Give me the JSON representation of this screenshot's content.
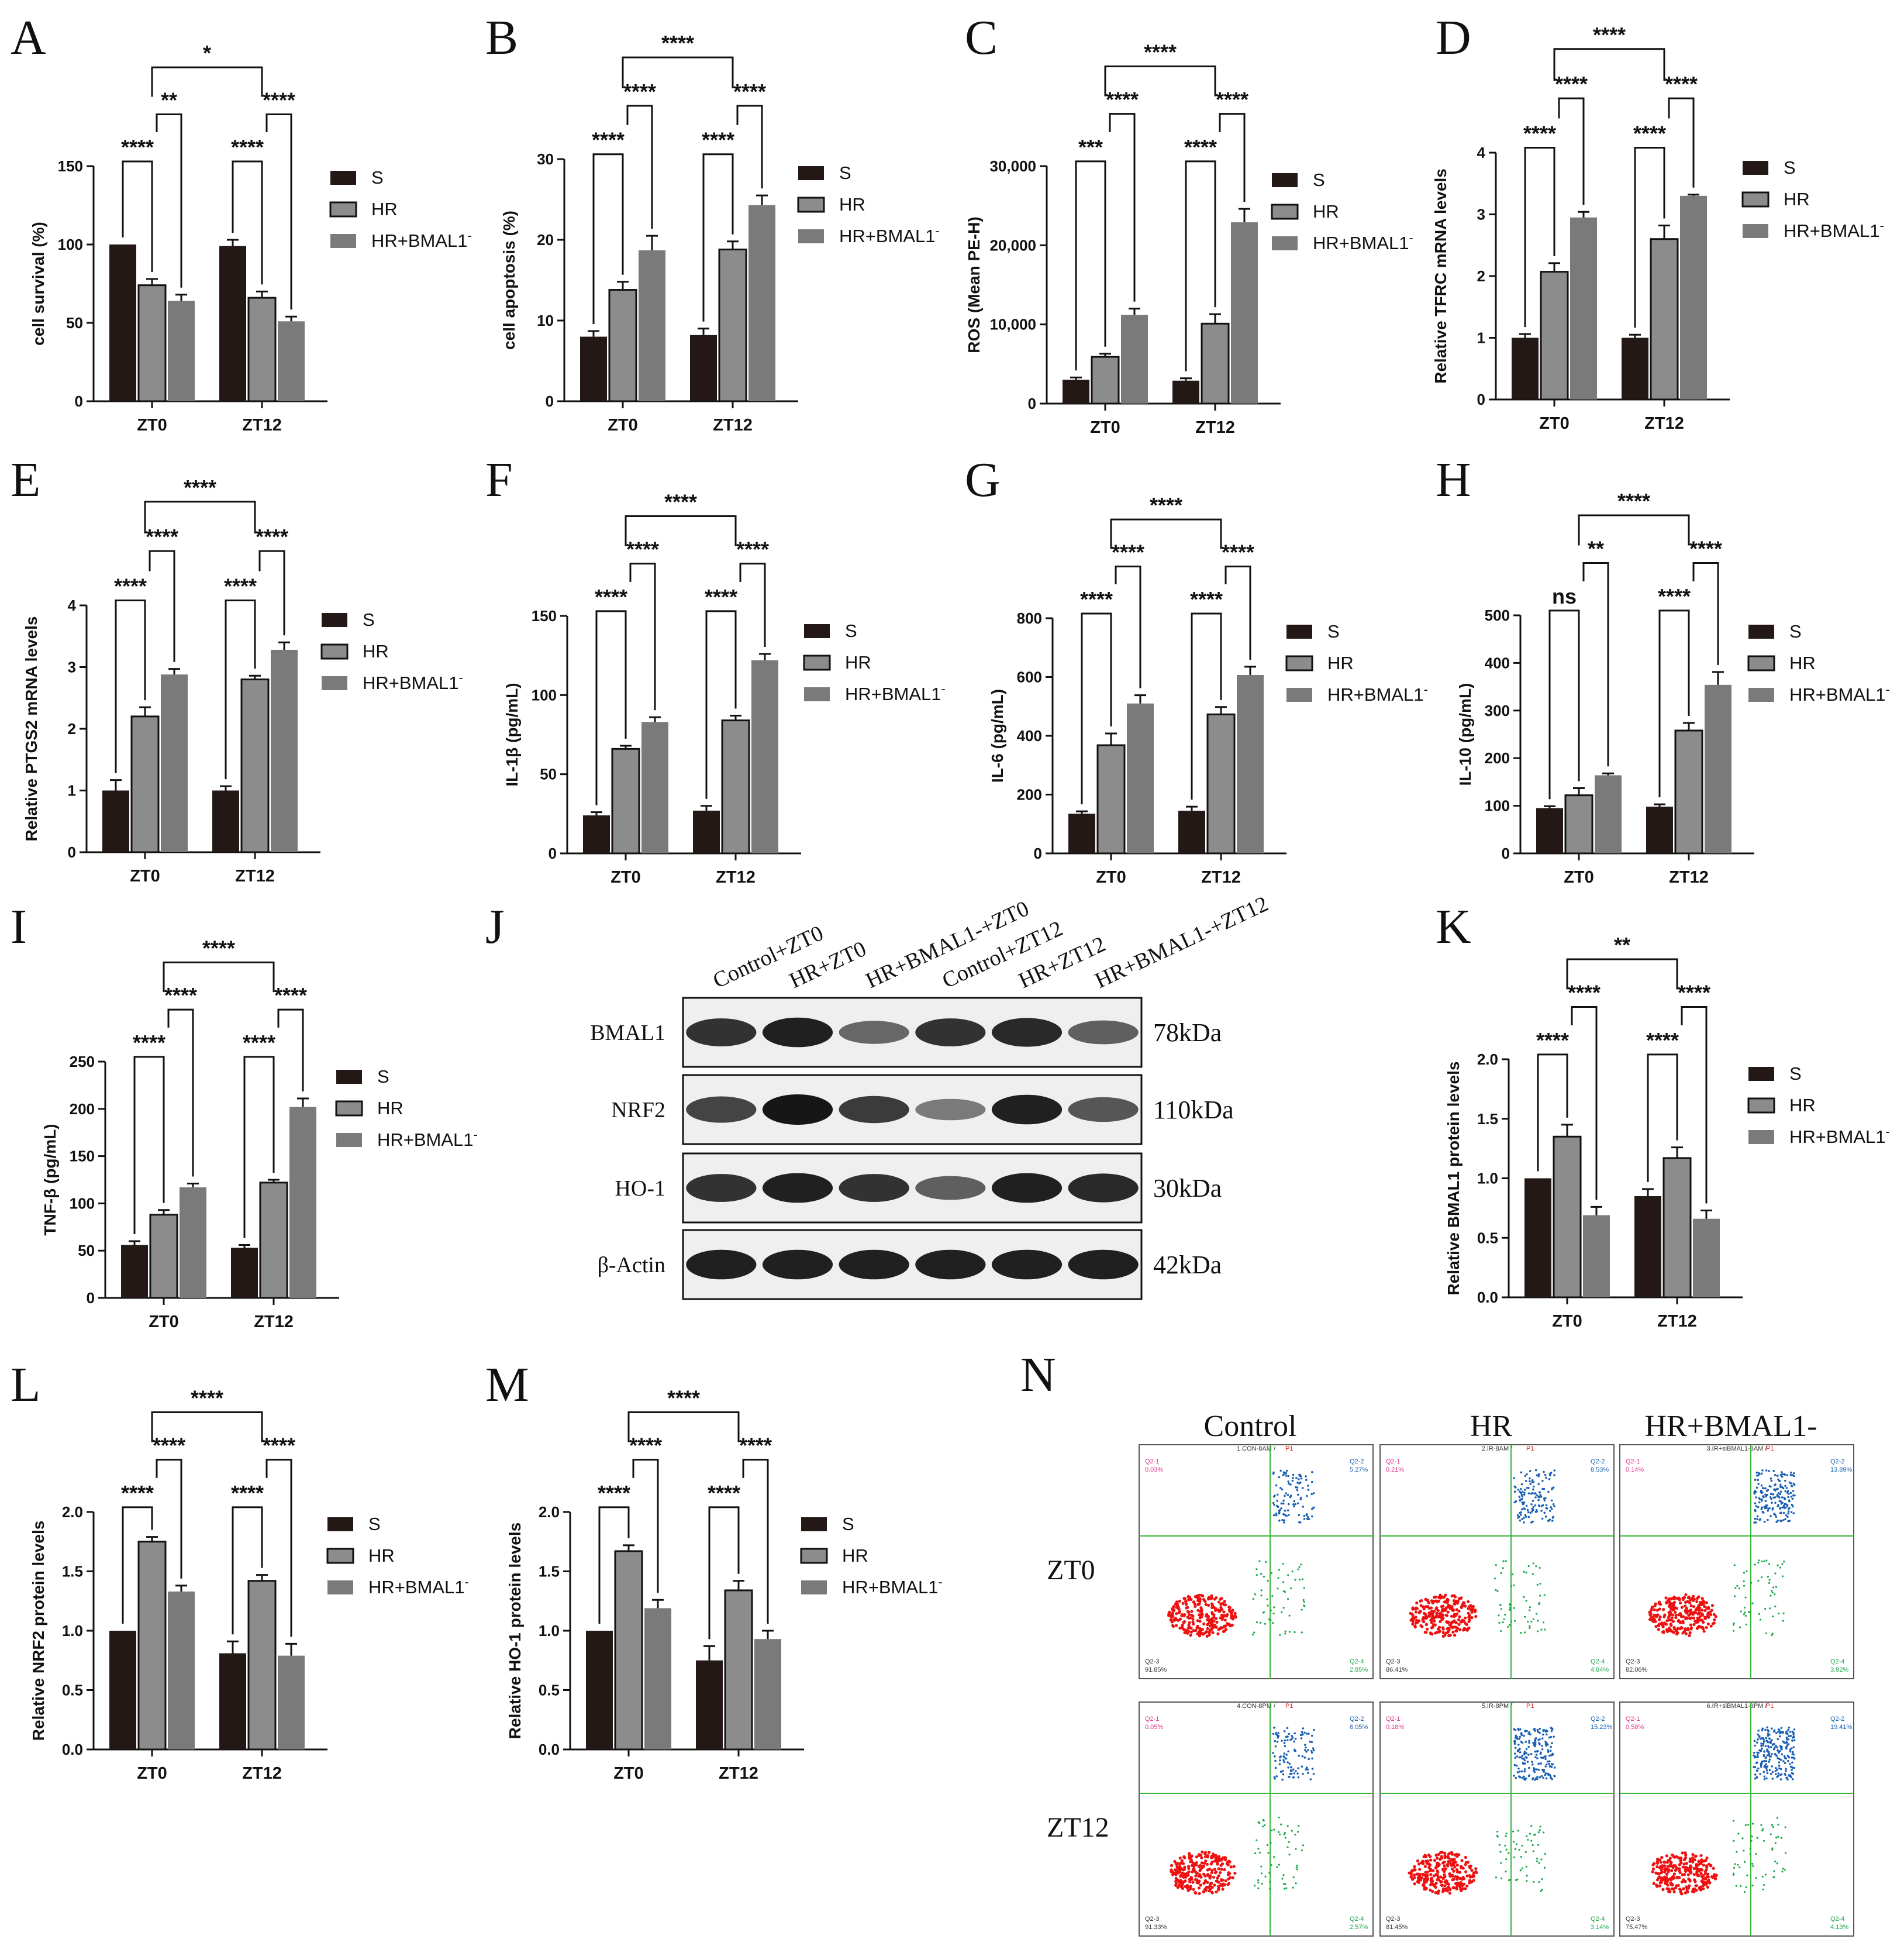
{
  "colors": {
    "S": "#231815",
    "HR": "#8c8c8c",
    "HR+BMAL1-": "#7a7a7a",
    "q1": "#e0368c",
    "q2": "#1a5fb4",
    "q3": "#ee1111",
    "q4": "#1aa84a",
    "gate": "#3ab53a"
  },
  "legend": [
    "S",
    "HR",
    "HR+BMAL1"
  ],
  "legend_sup": "-",
  "categories": [
    "ZT0",
    "ZT12"
  ],
  "chart_data": [
    {
      "id": "A",
      "type": "bar",
      "ylabel": "cell survival (%)",
      "ylim": [
        0,
        150
      ],
      "yticks": [
        "0",
        "50",
        "100",
        "150"
      ],
      "categories": [
        "ZT0",
        "ZT12"
      ],
      "series": [
        {
          "name": "S",
          "values": [
            100,
            99
          ],
          "errors": [
            0,
            4
          ]
        },
        {
          "name": "HR",
          "values": [
            74,
            66
          ],
          "errors": [
            4,
            4
          ]
        },
        {
          "name": "HR+BMAL1-",
          "values": [
            64,
            51
          ],
          "errors": [
            4,
            3
          ]
        }
      ],
      "annotations": [
        {
          "text": "****",
          "between": "S-HR",
          "group": "ZT0"
        },
        {
          "text": "**",
          "between": "HR-HR+BMAL1-",
          "group": "ZT0"
        },
        {
          "text": "****",
          "between": "S-HR",
          "group": "ZT12"
        },
        {
          "text": "****",
          "between": "HR-HR+BMAL1-",
          "group": "ZT12"
        },
        {
          "text": "*",
          "between": "ZT0-ZT12"
        }
      ]
    },
    {
      "id": "B",
      "type": "bar",
      "ylabel": "cell apoptosis (%)",
      "ylim": [
        0,
        30
      ],
      "yticks": [
        "0",
        "10",
        "20",
        "30"
      ],
      "categories": [
        "ZT0",
        "ZT12"
      ],
      "series": [
        {
          "name": "S",
          "values": [
            8,
            8.2
          ],
          "errors": [
            0.7,
            0.8
          ]
        },
        {
          "name": "HR",
          "values": [
            13.8,
            18.8
          ],
          "errors": [
            1,
            1
          ]
        },
        {
          "name": "HR+BMAL1-",
          "values": [
            18.7,
            24.3
          ],
          "errors": [
            1.8,
            1.2
          ]
        }
      ],
      "annotations": [
        {
          "text": "****",
          "between": "S-HR",
          "group": "ZT0"
        },
        {
          "text": "****",
          "between": "HR-HR+BMAL1-",
          "group": "ZT0"
        },
        {
          "text": "****",
          "between": "S-HR",
          "group": "ZT12"
        },
        {
          "text": "****",
          "between": "HR-HR+BMAL1-",
          "group": "ZT12"
        },
        {
          "text": "****",
          "between": "ZT0-ZT12"
        }
      ]
    },
    {
      "id": "C",
      "type": "bar",
      "ylabel": "ROS (Mean PE-H)",
      "ylim": [
        0,
        30000
      ],
      "yticks": [
        "0",
        "10,000",
        "20,000",
        "30,000"
      ],
      "categories": [
        "ZT0",
        "ZT12"
      ],
      "series": [
        {
          "name": "S",
          "values": [
            3000,
            2900
          ],
          "errors": [
            300,
            300
          ]
        },
        {
          "name": "HR",
          "values": [
            5900,
            10100
          ],
          "errors": [
            400,
            1200
          ]
        },
        {
          "name": "HR+BMAL1-",
          "values": [
            11200,
            22900
          ],
          "errors": [
            800,
            1700
          ]
        }
      ],
      "annotations": [
        {
          "text": "***",
          "between": "S-HR",
          "group": "ZT0"
        },
        {
          "text": "****",
          "between": "HR-HR+BMAL1-",
          "group": "ZT0"
        },
        {
          "text": "****",
          "between": "S-HR",
          "group": "ZT12"
        },
        {
          "text": "****",
          "between": "HR-HR+BMAL1-",
          "group": "ZT12"
        },
        {
          "text": "****",
          "between": "ZT0-ZT12"
        }
      ]
    },
    {
      "id": "D",
      "type": "bar",
      "ylabel": "Relative TFRC mRNA levels",
      "ylim": [
        0,
        4
      ],
      "yticks": [
        "0",
        "1",
        "2",
        "3",
        "4"
      ],
      "categories": [
        "ZT0",
        "ZT12"
      ],
      "series": [
        {
          "name": "S",
          "values": [
            1.0,
            1.0
          ],
          "errors": [
            0.06,
            0.05
          ]
        },
        {
          "name": "HR",
          "values": [
            2.07,
            2.6
          ],
          "errors": [
            0.14,
            0.22
          ]
        },
        {
          "name": "HR+BMAL1-",
          "values": [
            2.95,
            3.3
          ],
          "errors": [
            0.09,
            0.02
          ]
        }
      ],
      "annotations": [
        {
          "text": "****",
          "between": "S-HR",
          "group": "ZT0"
        },
        {
          "text": "****",
          "between": "HR-HR+BMAL1-",
          "group": "ZT0"
        },
        {
          "text": "****",
          "between": "S-HR",
          "group": "ZT12"
        },
        {
          "text": "****",
          "between": "HR-HR+BMAL1-",
          "group": "ZT12"
        },
        {
          "text": "****",
          "between": "ZT0-ZT12"
        }
      ]
    },
    {
      "id": "E",
      "type": "bar",
      "ylabel": "Relative PTGS2 mRNA levels",
      "ylim": [
        0,
        4
      ],
      "yticks": [
        "0",
        "1",
        "2",
        "3",
        "4"
      ],
      "categories": [
        "ZT0",
        "ZT12"
      ],
      "series": [
        {
          "name": "S",
          "values": [
            1.0,
            1.0
          ],
          "errors": [
            0.17,
            0.07
          ]
        },
        {
          "name": "HR",
          "values": [
            2.2,
            2.8
          ],
          "errors": [
            0.15,
            0.06
          ]
        },
        {
          "name": "HR+BMAL1-",
          "values": [
            2.88,
            3.28
          ],
          "errors": [
            0.09,
            0.12
          ]
        }
      ],
      "annotations": [
        {
          "text": "****",
          "between": "S-HR",
          "group": "ZT0"
        },
        {
          "text": "****",
          "between": "HR-HR+BMAL1-",
          "group": "ZT0"
        },
        {
          "text": "****",
          "between": "S-HR",
          "group": "ZT12"
        },
        {
          "text": "****",
          "between": "HR-HR+BMAL1-",
          "group": "ZT12"
        },
        {
          "text": "****",
          "between": "ZT0-ZT12"
        }
      ]
    },
    {
      "id": "F",
      "type": "bar",
      "ylabel": "IL-1β (pg/mL)",
      "ylim": [
        0,
        150
      ],
      "yticks": [
        "0",
        "50",
        "100",
        "150"
      ],
      "categories": [
        "ZT0",
        "ZT12"
      ],
      "series": [
        {
          "name": "S",
          "values": [
            24,
            27
          ],
          "errors": [
            2,
            3
          ]
        },
        {
          "name": "HR",
          "values": [
            66,
            84
          ],
          "errors": [
            2,
            3
          ]
        },
        {
          "name": "HR+BMAL1-",
          "values": [
            83,
            122
          ],
          "errors": [
            3,
            4
          ]
        }
      ],
      "annotations": [
        {
          "text": "****",
          "between": "S-HR",
          "group": "ZT0"
        },
        {
          "text": "****",
          "between": "HR-HR+BMAL1-",
          "group": "ZT0"
        },
        {
          "text": "****",
          "between": "S-HR",
          "group": "ZT12"
        },
        {
          "text": "****",
          "between": "HR-HR+BMAL1-",
          "group": "ZT12"
        },
        {
          "text": "****",
          "between": "ZT0-ZT12"
        }
      ]
    },
    {
      "id": "G",
      "type": "bar",
      "ylabel": "IL-6 (pg/mL)",
      "ylim": [
        0,
        800
      ],
      "yticks": [
        "0",
        "200",
        "400",
        "600",
        "800"
      ],
      "categories": [
        "ZT0",
        "ZT12"
      ],
      "series": [
        {
          "name": "S",
          "values": [
            135,
            145
          ],
          "errors": [
            8,
            14
          ]
        },
        {
          "name": "HR",
          "values": [
            368,
            473
          ],
          "errors": [
            40,
            25
          ]
        },
        {
          "name": "HR+BMAL1-",
          "values": [
            510,
            607
          ],
          "errors": [
            28,
            28
          ]
        }
      ],
      "annotations": [
        {
          "text": "****",
          "between": "S-HR",
          "group": "ZT0"
        },
        {
          "text": "****",
          "between": "HR-HR+BMAL1-",
          "group": "ZT0"
        },
        {
          "text": "****",
          "between": "S-HR",
          "group": "ZT12"
        },
        {
          "text": "****",
          "between": "HR-HR+BMAL1-",
          "group": "ZT12"
        },
        {
          "text": "****",
          "between": "ZT0-ZT12"
        }
      ]
    },
    {
      "id": "H",
      "type": "bar",
      "ylabel": "IL-10 (pg/mL)",
      "ylim": [
        0,
        500
      ],
      "yticks": [
        "0",
        "100",
        "200",
        "300",
        "400",
        "500"
      ],
      "categories": [
        "ZT0",
        "ZT12"
      ],
      "series": [
        {
          "name": "S",
          "values": [
            95,
            98
          ],
          "errors": [
            4,
            5
          ]
        },
        {
          "name": "HR",
          "values": [
            122,
            258
          ],
          "errors": [
            15,
            16
          ]
        },
        {
          "name": "HR+BMAL1-",
          "values": [
            164,
            354
          ],
          "errors": [
            4,
            27
          ]
        }
      ],
      "annotations": [
        {
          "text": "ns",
          "between": "S-HR",
          "group": "ZT0"
        },
        {
          "text": "**",
          "between": "HR-HR+BMAL1-",
          "group": "ZT0"
        },
        {
          "text": "****",
          "between": "S-HR",
          "group": "ZT12"
        },
        {
          "text": "****",
          "between": "HR-HR+BMAL1-",
          "group": "ZT12"
        },
        {
          "text": "****",
          "between": "ZT0-ZT12"
        }
      ]
    },
    {
      "id": "I",
      "type": "bar",
      "ylabel": "TNF-β (pg/mL)",
      "ylim": [
        0,
        250
      ],
      "yticks": [
        "0",
        "50",
        "100",
        "150",
        "200",
        "250"
      ],
      "categories": [
        "ZT0",
        "ZT12"
      ],
      "series": [
        {
          "name": "S",
          "values": [
            56,
            53
          ],
          "errors": [
            4,
            3
          ]
        },
        {
          "name": "HR",
          "values": [
            88,
            122
          ],
          "errors": [
            5,
            3
          ]
        },
        {
          "name": "HR+BMAL1-",
          "values": [
            117,
            202
          ],
          "errors": [
            4,
            9
          ]
        }
      ],
      "annotations": [
        {
          "text": "****",
          "between": "S-HR",
          "group": "ZT0"
        },
        {
          "text": "****",
          "between": "HR-HR+BMAL1-",
          "group": "ZT0"
        },
        {
          "text": "****",
          "between": "S-HR",
          "group": "ZT12"
        },
        {
          "text": "****",
          "between": "HR-HR+BMAL1-",
          "group": "ZT12"
        },
        {
          "text": "****",
          "between": "ZT0-ZT12"
        }
      ]
    },
    {
      "id": "K",
      "type": "bar",
      "ylabel": "Relative BMAL1 protein levels",
      "ylim": [
        0,
        2.0
      ],
      "yticks": [
        "0.0",
        "0.5",
        "1.0",
        "1.5",
        "2.0"
      ],
      "categories": [
        "ZT0",
        "ZT12"
      ],
      "series": [
        {
          "name": "S",
          "values": [
            1.0,
            0.85
          ],
          "errors": [
            0,
            0.06
          ]
        },
        {
          "name": "HR",
          "values": [
            1.35,
            1.17
          ],
          "errors": [
            0.1,
            0.09
          ]
        },
        {
          "name": "HR+BMAL1-",
          "values": [
            0.69,
            0.66
          ],
          "errors": [
            0.07,
            0.07
          ]
        }
      ],
      "annotations": [
        {
          "text": "****",
          "between": "S-HR",
          "group": "ZT0"
        },
        {
          "text": "****",
          "between": "HR-HR+BMAL1-",
          "group": "ZT0"
        },
        {
          "text": "****",
          "between": "S-HR",
          "group": "ZT12"
        },
        {
          "text": "****",
          "between": "HR-HR+BMAL1-",
          "group": "ZT12"
        },
        {
          "text": "**",
          "between": "ZT0-ZT12"
        }
      ]
    },
    {
      "id": "L",
      "type": "bar",
      "ylabel": "Relative NRF2 protein levels",
      "ylim": [
        0,
        2.0
      ],
      "yticks": [
        "0.0",
        "0.5",
        "1.0",
        "1.5",
        "2.0"
      ],
      "categories": [
        "ZT0",
        "ZT12"
      ],
      "series": [
        {
          "name": "S",
          "values": [
            1.0,
            0.81
          ],
          "errors": [
            0,
            0.1
          ]
        },
        {
          "name": "HR",
          "values": [
            1.75,
            1.42
          ],
          "errors": [
            0.04,
            0.05
          ]
        },
        {
          "name": "HR+BMAL1-",
          "values": [
            1.33,
            0.79
          ],
          "errors": [
            0.05,
            0.1
          ]
        }
      ],
      "annotations": [
        {
          "text": "****",
          "between": "S-HR",
          "group": "ZT0"
        },
        {
          "text": "****",
          "between": "HR-HR+BMAL1-",
          "group": "ZT0"
        },
        {
          "text": "****",
          "between": "S-HR",
          "group": "ZT12"
        },
        {
          "text": "****",
          "between": "HR-HR+BMAL1-",
          "group": "ZT12"
        },
        {
          "text": "****",
          "between": "ZT0-ZT12"
        }
      ]
    },
    {
      "id": "M",
      "type": "bar",
      "ylabel": "Relative HO-1 protein levels",
      "ylim": [
        0,
        2.0
      ],
      "yticks": [
        "0.0",
        "0.5",
        "1.0",
        "1.5",
        "2.0"
      ],
      "categories": [
        "ZT0",
        "ZT12"
      ],
      "series": [
        {
          "name": "S",
          "values": [
            1.0,
            0.75
          ],
          "errors": [
            0,
            0.12
          ]
        },
        {
          "name": "HR",
          "values": [
            1.67,
            1.34
          ],
          "errors": [
            0.05,
            0.08
          ]
        },
        {
          "name": "HR+BMAL1-",
          "values": [
            1.19,
            0.93
          ],
          "errors": [
            0.07,
            0.07
          ]
        }
      ],
      "annotations": [
        {
          "text": "****",
          "between": "S-HR",
          "group": "ZT0"
        },
        {
          "text": "****",
          "between": "HR-HR+BMAL1-",
          "group": "ZT0"
        },
        {
          "text": "****",
          "between": "S-HR",
          "group": "ZT12"
        },
        {
          "text": "****",
          "between": "HR-HR+BMAL1-",
          "group": "ZT12"
        },
        {
          "text": "****",
          "between": "ZT0-ZT12"
        }
      ]
    }
  ],
  "western": {
    "label": "J",
    "lanes": [
      "Control+ZT0",
      "HR+ZT0",
      "HR+BMAL1-+ZT0",
      "Control+ZT12",
      "HR+ZT12",
      "HR+BMAL1-+ZT12"
    ],
    "rows": [
      {
        "name": "BMAL1",
        "kda": "78kDa",
        "intensity": [
          0.85,
          0.95,
          0.55,
          0.85,
          0.9,
          0.6
        ]
      },
      {
        "name": "NRF2",
        "kda": "110kDa",
        "intensity": [
          0.75,
          1.0,
          0.8,
          0.45,
          0.95,
          0.65
        ]
      },
      {
        "name": "HO-1",
        "kda": "30kDa",
        "intensity": [
          0.85,
          0.95,
          0.85,
          0.6,
          0.95,
          0.9
        ]
      },
      {
        "name": "β-Actin",
        "kda": "42kDa",
        "intensity": [
          0.95,
          0.95,
          0.95,
          0.95,
          0.95,
          0.95
        ]
      }
    ]
  },
  "flow": {
    "label": "N",
    "columns": [
      "Control",
      "HR",
      "HR+BMAL1-"
    ],
    "rows": [
      "ZT0",
      "ZT12"
    ],
    "plots": [
      {
        "title": "1.CON-8AM",
        "gate": "P1",
        "q1": "0.03%",
        "q2": "5.27%",
        "q3": "91.85%",
        "q4": "2.85%"
      },
      {
        "title": "2.IR-8AM",
        "gate": "P1",
        "q1": "0.21%",
        "q2": "8.53%",
        "q3": "86.41%",
        "q4": "4.84%"
      },
      {
        "title": "3.IR+siBMAL1-8AM",
        "gate": "P1",
        "q1": "0.14%",
        "q2": "13.89%",
        "q3": "82.06%",
        "q4": "3.92%"
      },
      {
        "title": "4.CON-8PM",
        "gate": "P1",
        "q1": "0.05%",
        "q2": "6.05%",
        "q3": "91.33%",
        "q4": "2.57%"
      },
      {
        "title": "5.IR-8PM",
        "gate": "P1",
        "q1": "0.18%",
        "q2": "15.23%",
        "q3": "81.45%",
        "q4": "3.14%"
      },
      {
        "title": "6.IR+siBMAL1-8PM",
        "gate": "P1",
        "q1": "0.58%",
        "q2": "19.41%",
        "q3": "75.47%",
        "q4": "4.13%"
      }
    ],
    "quadrant_names": [
      "Q2-1",
      "Q2-2",
      "Q2-3",
      "Q2-4"
    ]
  }
}
